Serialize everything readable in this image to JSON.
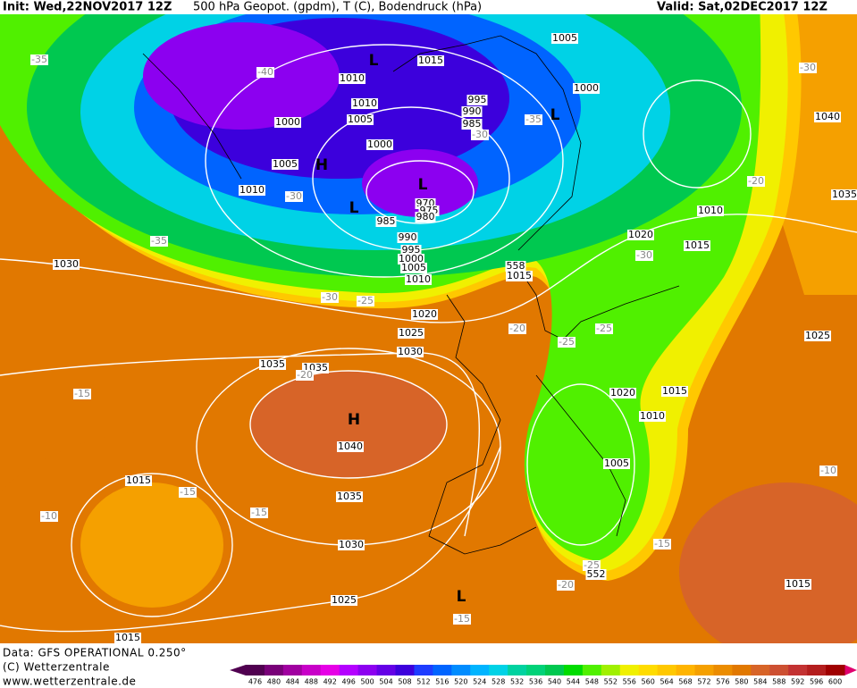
{
  "header": {
    "init": "Init: Wed,22NOV2017 12Z",
    "title": "500 hPa Geopot. (gpdm), T (C), Bodendruck (hPa)",
    "valid": "Valid: Sat,02DEC2017 12Z"
  },
  "isobar_labels": [
    1015,
    1005,
    1010,
    1010,
    1005,
    1000,
    1000,
    1005,
    1010,
    995,
    990,
    985,
    970,
    975,
    980,
    985,
    990,
    995,
    1000,
    1005,
    1010,
    1000,
    1040,
    1010,
    1020,
    1015,
    1030,
    1015,
    1020,
    1025,
    1030,
    1035,
    1035,
    1040,
    1035,
    1030,
    1025,
    1015,
    1015,
    1020,
    1015,
    1010,
    1005,
    1025,
    1015,
    1035
  ],
  "temperature_labels": [
    -35,
    -40,
    -35,
    -30,
    -30,
    -35,
    -20,
    -30,
    -30,
    -30,
    -25,
    -20,
    -25,
    -25,
    -20,
    -15,
    -15,
    -15,
    -10,
    -15,
    -25,
    -20,
    -15,
    -10
  ],
  "geopotential_labels": [
    558,
    552
  ],
  "centers": [
    "L",
    "L",
    "H",
    "L",
    "L",
    "H",
    "L"
  ],
  "footer": {
    "data": "Data: GFS OPERATIONAL 0.250°",
    "copyright": "(C) Wetterzentrale",
    "url": "www.wetterzentrale.de"
  },
  "colorbar": {
    "labels": [
      476,
      480,
      484,
      488,
      492,
      496,
      500,
      504,
      508,
      512,
      516,
      520,
      524,
      528,
      532,
      536,
      540,
      544,
      548,
      552,
      556,
      560,
      564,
      568,
      572,
      576,
      580,
      584,
      588,
      592,
      596,
      600
    ],
    "colors": [
      "#500050",
      "#780078",
      "#a000a0",
      "#c800c8",
      "#e600e6",
      "#b400ff",
      "#8c00f0",
      "#6400e6",
      "#3c00dc",
      "#1e3cff",
      "#0064ff",
      "#008cff",
      "#00b4ff",
      "#00d2e6",
      "#00d2a0",
      "#00d278",
      "#00c850",
      "#00dc00",
      "#50f000",
      "#a0f000",
      "#f0f000",
      "#ffdc00",
      "#ffc800",
      "#ffb400",
      "#f5a000",
      "#eb8c00",
      "#e17800",
      "#d76428",
      "#cd5032",
      "#c33232",
      "#b41e1e",
      "#a00000"
    ]
  }
}
